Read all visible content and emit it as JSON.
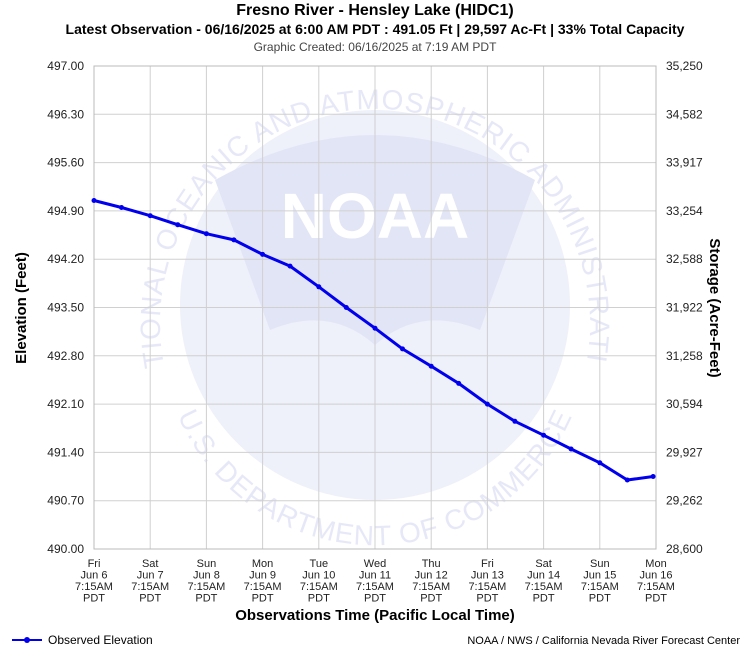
{
  "header": {
    "title": "Fresno River - Hensley Lake (HIDC1)",
    "subtitle": "Latest Observation - 06/16/2025 at 6:00 AM PDT : 491.05 Ft | 29,597 Ac-Ft | 33% Total Capacity",
    "created": "Graphic Created: 06/16/2025 at 7:19 AM PDT"
  },
  "footer": {
    "legend_label": "Observed Elevation",
    "credit": "NOAA / NWS / California Nevada River Forecast Center"
  },
  "watermark": {
    "arc_top": "NATIONAL OCEANIC AND ATMOSPHERIC ADMINISTRATION",
    "arc_bottom": "U.S. DEPARTMENT OF COMMERCE",
    "logo_text": "NOAA"
  },
  "colors": {
    "series": "#0000ee",
    "grid": "#d0d0d0",
    "watermark": "#e6e8f7"
  },
  "chart_data": {
    "type": "line",
    "xlabel": "Observations Time (Pacific Local Time)",
    "ylabel": "Elevation (Feet)",
    "y2label": "Storage (Acre-Feet)",
    "ylim": [
      490.0,
      497.0
    ],
    "y_ticks": [
      "497.00",
      "496.30",
      "495.60",
      "494.90",
      "494.20",
      "493.50",
      "492.80",
      "492.10",
      "491.40",
      "490.70",
      "490.00"
    ],
    "y2_ticks": [
      "35,250",
      "34,582",
      "33,917",
      "33,254",
      "32,588",
      "31,922",
      "31,258",
      "30,594",
      "29,927",
      "29,262",
      "28,600"
    ],
    "x_ticks": [
      [
        "Fri",
        "Jun 6",
        "7:15AM",
        "PDT"
      ],
      [
        "Sat",
        "Jun 7",
        "7:15AM",
        "PDT"
      ],
      [
        "Sun",
        "Jun 8",
        "7:15AM",
        "PDT"
      ],
      [
        "Mon",
        "Jun 9",
        "7:15AM",
        "PDT"
      ],
      [
        "Tue",
        "Jun 10",
        "7:15AM",
        "PDT"
      ],
      [
        "Wed",
        "Jun 11",
        "7:15AM",
        "PDT"
      ],
      [
        "Thu",
        "Jun 12",
        "7:15AM",
        "PDT"
      ],
      [
        "Fri",
        "Jun 13",
        "7:15AM",
        "PDT"
      ],
      [
        "Sat",
        "Jun 14",
        "7:15AM",
        "PDT"
      ],
      [
        "Sun",
        "Jun 15",
        "7:15AM",
        "PDT"
      ],
      [
        "Mon",
        "Jun 16",
        "7:15AM",
        "PDT"
      ]
    ],
    "grid": true,
    "legend": "bottom-left",
    "series": [
      {
        "name": "Observed Elevation",
        "x": [
          "2025-06-06 07:15",
          "2025-06-06 19:00",
          "2025-06-07 07:15",
          "2025-06-07 19:00",
          "2025-06-08 07:15",
          "2025-06-08 19:00",
          "2025-06-09 07:15",
          "2025-06-09 19:00",
          "2025-06-10 07:15",
          "2025-06-10 19:00",
          "2025-06-11 07:15",
          "2025-06-11 19:00",
          "2025-06-12 07:15",
          "2025-06-12 19:00",
          "2025-06-13 07:15",
          "2025-06-13 19:00",
          "2025-06-14 07:15",
          "2025-06-14 19:00",
          "2025-06-15 07:15",
          "2025-06-15 19:00",
          "2025-06-16 06:00"
        ],
        "y": [
          495.05,
          494.95,
          494.83,
          494.7,
          494.57,
          494.48,
          494.27,
          494.1,
          493.8,
          493.5,
          493.2,
          492.9,
          492.65,
          492.4,
          492.1,
          491.85,
          491.65,
          491.45,
          491.25,
          491.0,
          491.05
        ]
      }
    ]
  }
}
